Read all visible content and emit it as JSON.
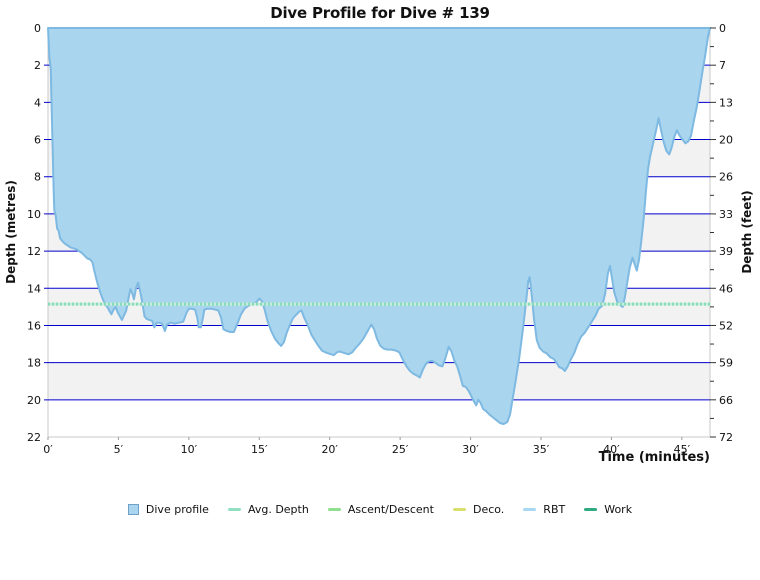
{
  "chart_data": {
    "type": "area",
    "title": "Dive Profile for Dive # 139",
    "xlabel": "Time (minutes)",
    "ylabel_left": "Depth (metres)",
    "ylabel_right": "Depth (feet)",
    "xlim": [
      0,
      47
    ],
    "ylim": [
      0,
      22
    ],
    "x_ticks": [
      0,
      5,
      10,
      15,
      20,
      25,
      30,
      35,
      40,
      45
    ],
    "x_tick_suffix": "′",
    "y_ticks_metres": [
      0,
      2,
      4,
      6,
      8,
      10,
      12,
      14,
      16,
      18,
      20,
      22
    ],
    "y_ticks_feet": [
      0,
      7,
      13,
      20,
      26,
      33,
      39,
      46,
      52,
      59,
      66,
      72
    ],
    "grid": true,
    "legend_position": "bottom",
    "avg_depth_m": 14.85,
    "series": [
      {
        "name": "Dive profile",
        "points": [
          [
            0,
            0
          ],
          [
            0.1,
            1.6
          ],
          [
            0.2,
            2.2
          ],
          [
            0.25,
            4.0
          ],
          [
            0.3,
            5.5
          ],
          [
            0.35,
            7.0
          ],
          [
            0.4,
            8.6
          ],
          [
            0.45,
            9.8
          ],
          [
            0.55,
            10.1
          ],
          [
            0.65,
            10.8
          ],
          [
            0.75,
            10.9
          ],
          [
            0.85,
            11.3
          ],
          [
            1.0,
            11.45
          ],
          [
            1.2,
            11.6
          ],
          [
            1.4,
            11.7
          ],
          [
            1.6,
            11.8
          ],
          [
            1.8,
            11.85
          ],
          [
            2.0,
            11.9
          ],
          [
            2.2,
            12.0
          ],
          [
            2.4,
            12.1
          ],
          [
            2.6,
            12.25
          ],
          [
            2.8,
            12.4
          ],
          [
            3.0,
            12.45
          ],
          [
            3.15,
            12.6
          ],
          [
            3.3,
            13.1
          ],
          [
            3.5,
            13.7
          ],
          [
            3.7,
            14.2
          ],
          [
            3.9,
            14.6
          ],
          [
            4.05,
            14.85
          ],
          [
            4.2,
            15.0
          ],
          [
            4.35,
            15.2
          ],
          [
            4.5,
            15.4
          ],
          [
            4.65,
            15.15
          ],
          [
            4.8,
            15.0
          ],
          [
            4.95,
            15.3
          ],
          [
            5.1,
            15.5
          ],
          [
            5.25,
            15.7
          ],
          [
            5.4,
            15.45
          ],
          [
            5.55,
            15.2
          ],
          [
            5.7,
            14.6
          ],
          [
            5.85,
            14.05
          ],
          [
            6.0,
            14.3
          ],
          [
            6.1,
            14.6
          ],
          [
            6.25,
            14.0
          ],
          [
            6.4,
            13.7
          ],
          [
            6.55,
            14.2
          ],
          [
            6.7,
            14.8
          ],
          [
            6.85,
            15.5
          ],
          [
            7.0,
            15.65
          ],
          [
            7.2,
            15.7
          ],
          [
            7.4,
            15.75
          ],
          [
            7.55,
            16.1
          ],
          [
            7.7,
            15.85
          ],
          [
            7.9,
            15.85
          ],
          [
            8.1,
            15.9
          ],
          [
            8.3,
            16.3
          ],
          [
            8.45,
            15.95
          ],
          [
            8.7,
            15.85
          ],
          [
            9.0,
            15.9
          ],
          [
            9.3,
            15.85
          ],
          [
            9.6,
            15.8
          ],
          [
            9.85,
            15.3
          ],
          [
            10.0,
            15.1
          ],
          [
            10.2,
            15.1
          ],
          [
            10.45,
            15.15
          ],
          [
            10.6,
            15.6
          ],
          [
            10.7,
            16.1
          ],
          [
            10.85,
            16.1
          ],
          [
            11.0,
            15.6
          ],
          [
            11.1,
            15.15
          ],
          [
            11.3,
            15.1
          ],
          [
            11.6,
            15.1
          ],
          [
            11.9,
            15.15
          ],
          [
            12.1,
            15.2
          ],
          [
            12.3,
            15.6
          ],
          [
            12.45,
            16.2
          ],
          [
            12.7,
            16.3
          ],
          [
            12.95,
            16.35
          ],
          [
            13.2,
            16.35
          ],
          [
            13.45,
            15.9
          ],
          [
            13.7,
            15.4
          ],
          [
            13.95,
            15.1
          ],
          [
            14.2,
            14.95
          ],
          [
            14.5,
            14.85
          ],
          [
            14.8,
            14.75
          ],
          [
            15.0,
            14.55
          ],
          [
            15.2,
            14.7
          ],
          [
            15.4,
            15.2
          ],
          [
            15.6,
            15.8
          ],
          [
            15.85,
            16.3
          ],
          [
            16.1,
            16.7
          ],
          [
            16.35,
            16.95
          ],
          [
            16.55,
            17.1
          ],
          [
            16.75,
            16.9
          ],
          [
            16.95,
            16.4
          ],
          [
            17.15,
            16.0
          ],
          [
            17.4,
            15.6
          ],
          [
            17.65,
            15.4
          ],
          [
            17.85,
            15.25
          ],
          [
            18.0,
            15.2
          ],
          [
            18.2,
            15.6
          ],
          [
            18.45,
            16.0
          ],
          [
            18.7,
            16.5
          ],
          [
            18.95,
            16.8
          ],
          [
            19.2,
            17.1
          ],
          [
            19.45,
            17.35
          ],
          [
            19.7,
            17.45
          ],
          [
            19.9,
            17.5
          ],
          [
            20.1,
            17.55
          ],
          [
            20.3,
            17.6
          ],
          [
            20.5,
            17.45
          ],
          [
            20.7,
            17.4
          ],
          [
            20.9,
            17.45
          ],
          [
            21.1,
            17.5
          ],
          [
            21.35,
            17.55
          ],
          [
            21.6,
            17.45
          ],
          [
            21.85,
            17.2
          ],
          [
            22.1,
            17.0
          ],
          [
            22.4,
            16.7
          ],
          [
            22.7,
            16.3
          ],
          [
            22.95,
            15.95
          ],
          [
            23.15,
            16.2
          ],
          [
            23.35,
            16.7
          ],
          [
            23.6,
            17.1
          ],
          [
            23.85,
            17.25
          ],
          [
            24.1,
            17.3
          ],
          [
            24.4,
            17.3
          ],
          [
            24.7,
            17.35
          ],
          [
            24.95,
            17.45
          ],
          [
            25.2,
            17.85
          ],
          [
            25.45,
            18.2
          ],
          [
            25.7,
            18.45
          ],
          [
            25.95,
            18.6
          ],
          [
            26.2,
            18.7
          ],
          [
            26.4,
            18.8
          ],
          [
            26.6,
            18.4
          ],
          [
            26.8,
            18.1
          ],
          [
            27.0,
            17.95
          ],
          [
            27.25,
            17.9
          ],
          [
            27.5,
            18.0
          ],
          [
            27.75,
            18.15
          ],
          [
            28.0,
            18.2
          ],
          [
            28.2,
            17.8
          ],
          [
            28.45,
            17.15
          ],
          [
            28.65,
            17.4
          ],
          [
            28.85,
            17.9
          ],
          [
            29.05,
            18.2
          ],
          [
            29.25,
            18.7
          ],
          [
            29.45,
            19.25
          ],
          [
            29.65,
            19.3
          ],
          [
            29.85,
            19.5
          ],
          [
            30.05,
            19.8
          ],
          [
            30.25,
            20.1
          ],
          [
            30.4,
            20.3
          ],
          [
            30.55,
            20.0
          ],
          [
            30.7,
            20.15
          ],
          [
            30.9,
            20.5
          ],
          [
            31.1,
            20.6
          ],
          [
            31.35,
            20.8
          ],
          [
            31.6,
            20.95
          ],
          [
            31.85,
            21.1
          ],
          [
            32.1,
            21.25
          ],
          [
            32.35,
            21.3
          ],
          [
            32.6,
            21.2
          ],
          [
            32.8,
            20.8
          ],
          [
            33.0,
            19.9
          ],
          [
            33.2,
            19.0
          ],
          [
            33.45,
            17.8
          ],
          [
            33.7,
            16.3
          ],
          [
            33.9,
            15.0
          ],
          [
            34.1,
            13.6
          ],
          [
            34.2,
            13.4
          ],
          [
            34.35,
            14.4
          ],
          [
            34.5,
            15.6
          ],
          [
            34.7,
            16.8
          ],
          [
            34.9,
            17.2
          ],
          [
            35.15,
            17.4
          ],
          [
            35.4,
            17.5
          ],
          [
            35.65,
            17.7
          ],
          [
            35.9,
            17.8
          ],
          [
            36.1,
            18.0
          ],
          [
            36.3,
            18.25
          ],
          [
            36.5,
            18.3
          ],
          [
            36.7,
            18.45
          ],
          [
            36.9,
            18.2
          ],
          [
            37.1,
            17.85
          ],
          [
            37.35,
            17.5
          ],
          [
            37.6,
            17.0
          ],
          [
            37.85,
            16.6
          ],
          [
            38.1,
            16.4
          ],
          [
            38.35,
            16.1
          ],
          [
            38.6,
            15.8
          ],
          [
            38.85,
            15.5
          ],
          [
            39.1,
            15.1
          ],
          [
            39.35,
            14.95
          ],
          [
            39.55,
            14.3
          ],
          [
            39.75,
            13.2
          ],
          [
            39.9,
            12.8
          ],
          [
            40.05,
            13.5
          ],
          [
            40.2,
            14.2
          ],
          [
            40.4,
            14.7
          ],
          [
            40.6,
            14.9
          ],
          [
            40.8,
            15.0
          ],
          [
            40.95,
            14.5
          ],
          [
            41.1,
            13.8
          ],
          [
            41.3,
            12.9
          ],
          [
            41.5,
            12.35
          ],
          [
            41.65,
            12.7
          ],
          [
            41.8,
            13.05
          ],
          [
            41.95,
            12.5
          ],
          [
            42.1,
            11.6
          ],
          [
            42.3,
            10.2
          ],
          [
            42.45,
            8.8
          ],
          [
            42.6,
            7.6
          ],
          [
            42.75,
            6.9
          ],
          [
            42.9,
            6.4
          ],
          [
            43.05,
            5.9
          ],
          [
            43.2,
            5.4
          ],
          [
            43.35,
            4.85
          ],
          [
            43.5,
            5.4
          ],
          [
            43.7,
            6.1
          ],
          [
            43.9,
            6.6
          ],
          [
            44.1,
            6.8
          ],
          [
            44.25,
            6.5
          ],
          [
            44.45,
            5.9
          ],
          [
            44.65,
            5.5
          ],
          [
            44.85,
            5.8
          ],
          [
            45.05,
            6.0
          ],
          [
            45.25,
            6.2
          ],
          [
            45.45,
            6.1
          ],
          [
            45.65,
            5.8
          ],
          [
            45.85,
            5.0
          ],
          [
            46.05,
            4.3
          ],
          [
            46.25,
            3.4
          ],
          [
            46.45,
            2.4
          ],
          [
            46.65,
            1.5
          ],
          [
            46.85,
            0.5
          ],
          [
            47.0,
            0
          ]
        ]
      }
    ]
  },
  "legend": {
    "items": [
      {
        "label": "Dive profile",
        "shape": "square",
        "fill": "#A9D6EE",
        "stroke": "#6FA0C8"
      },
      {
        "label": "Avg. Depth",
        "shape": "dash",
        "fill": "#8FDFC0"
      },
      {
        "label": "Ascent/Descent",
        "shape": "dash",
        "fill": "#90DE90"
      },
      {
        "label": "Deco.",
        "shape": "dash",
        "fill": "#D9DF6E"
      },
      {
        "label": "RBT",
        "shape": "dash",
        "fill": "#A9D9F2"
      },
      {
        "label": "Work",
        "shape": "dash",
        "fill": "#2FAA82"
      }
    ]
  },
  "colors": {
    "area_fill": "#A9D6EE",
    "area_stroke": "#7EB9E2",
    "gridline": "#0000CC",
    "band": "#F2F2F2",
    "plot_border": "#C9C9C9",
    "avg_line_base": "#C9EEDD",
    "avg_line_dash": "#86DCB8",
    "tick": "#333333",
    "x_tick": "#999999",
    "text": "#111111"
  }
}
